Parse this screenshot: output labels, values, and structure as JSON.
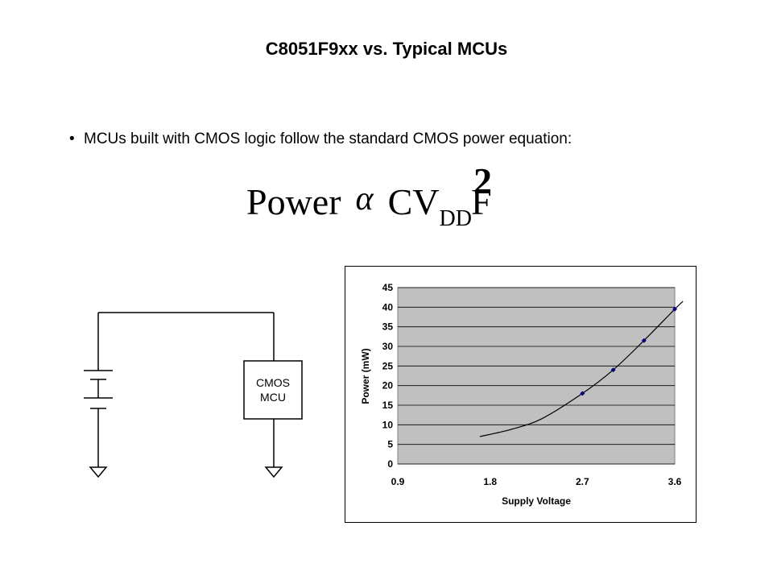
{
  "slide": {
    "title": "C8051F9xx vs. Typical MCUs",
    "bullet_symbol": "•",
    "bullet_text": "MCUs built with CMOS logic follow the standard CMOS power equation:"
  },
  "equation": {
    "lhs": "Power",
    "proportional_symbol": "α",
    "cv": "CV",
    "subscript": "DD",
    "superscript": "2",
    "f": "F"
  },
  "circuit": {
    "mcu_label_line1": "CMOS",
    "mcu_label_line2": "MCU"
  },
  "chart_data": {
    "type": "scatter",
    "xlabel": "Supply Voltage",
    "ylabel": "Power (mW)",
    "xlim": [
      0.9,
      3.6
    ],
    "ylim": [
      0,
      45
    ],
    "x_ticks": [
      "0.9",
      "1.8",
      "2.7",
      "3.6"
    ],
    "y_ticks": [
      "0",
      "5",
      "10",
      "15",
      "20",
      "25",
      "30",
      "35",
      "40",
      "45"
    ],
    "points": [
      {
        "x": 2.7,
        "y": 18
      },
      {
        "x": 3.0,
        "y": 24
      },
      {
        "x": 3.3,
        "y": 31.5
      },
      {
        "x": 3.6,
        "y": 39.5
      }
    ],
    "trendline": [
      {
        "x": 1.7,
        "y": 7
      },
      {
        "x": 2.0,
        "y": 8.8
      },
      {
        "x": 2.3,
        "y": 11.5
      },
      {
        "x": 2.7,
        "y": 18
      },
      {
        "x": 3.0,
        "y": 24
      },
      {
        "x": 3.3,
        "y": 31.5
      },
      {
        "x": 3.6,
        "y": 39.5
      },
      {
        "x": 3.68,
        "y": 41.5
      }
    ],
    "grid": true,
    "plot_background": "#c0c0c0",
    "marker_color": "#000080"
  }
}
